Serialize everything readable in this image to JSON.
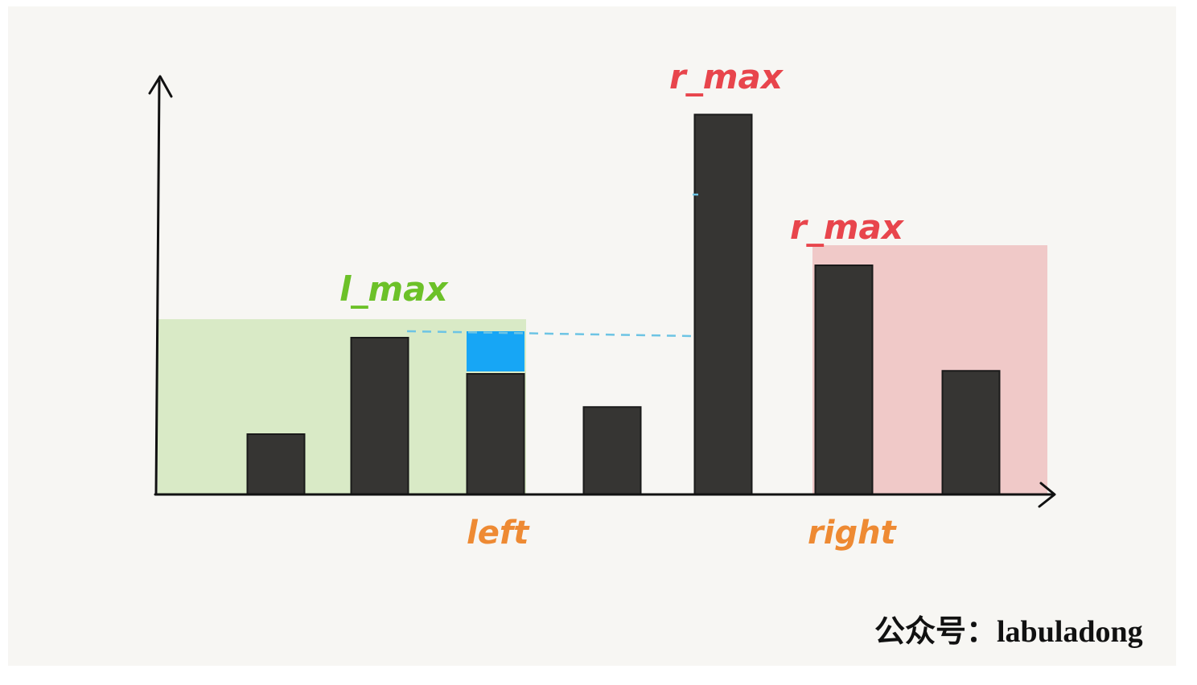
{
  "labels": {
    "l_max": "l_max",
    "r_max_top": "r_max",
    "r_max_right": "r_max",
    "left": "left",
    "right": "right",
    "watermark": "公众号：labuladong"
  },
  "colors": {
    "background": "#f7f6f3",
    "bar": "#363533",
    "green_region": "#d9eac6",
    "pink_region": "#f0c9c8",
    "water": "#17a6f5",
    "dashed_line": "#6dc4e4",
    "axis": "#111111",
    "l_max_text": "#6cc128",
    "r_max_text": "#e8454c",
    "pointer_text": "#ee8a33",
    "watermark_text": "#111111"
  },
  "icons": {
    "y_axis_arrow": "up-arrowhead",
    "x_axis_arrow": "right-arrowhead"
  },
  "chart_data": {
    "type": "bar",
    "bars": [
      {
        "height": 0
      },
      {
        "height": 1
      },
      {
        "height": 2.6
      },
      {
        "height": 2
      },
      {
        "height": 1.45
      },
      {
        "height": 6.3
      },
      {
        "height": 3.8
      },
      {
        "height": 2.05
      }
    ],
    "water": {
      "bar": 3,
      "height": 0.65
    },
    "l_max_region": {
      "from_bar": 0,
      "to_bar": 3,
      "level": 2.8
    },
    "r_max_region": {
      "from_bar": 6,
      "to_bar": 7,
      "level": 4.1
    },
    "left_pointer_bar": 3,
    "right_pointer_bar": 6
  }
}
